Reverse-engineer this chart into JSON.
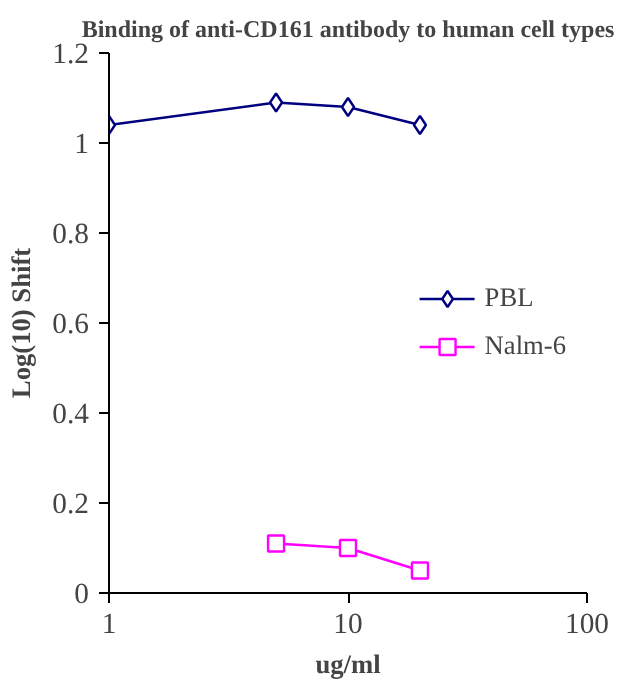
{
  "chart_data": {
    "type": "line",
    "title": "Binding of anti-CD161 antibody to human cell types",
    "xlabel": "ug/ml",
    "ylabel": "Log(10) Shift",
    "log": "x",
    "xlim": [
      1,
      100
    ],
    "xticks": [
      1,
      10,
      100
    ],
    "ylim": [
      0,
      1.2
    ],
    "yticks": [
      0,
      0.2,
      0.4,
      0.6,
      0.8,
      1,
      1.2
    ],
    "grid": false,
    "legend": "right",
    "series": [
      {
        "name": "PBL",
        "color": "#000080",
        "marker": "diamond",
        "x": [
          1,
          5,
          10,
          20
        ],
        "values": [
          1.04,
          1.09,
          1.08,
          1.04
        ]
      },
      {
        "name": "Nalm-6",
        "color": "#ff00ff",
        "marker": "square",
        "x": [
          5,
          10,
          20
        ],
        "values": [
          0.11,
          0.1,
          0.05
        ]
      }
    ]
  }
}
